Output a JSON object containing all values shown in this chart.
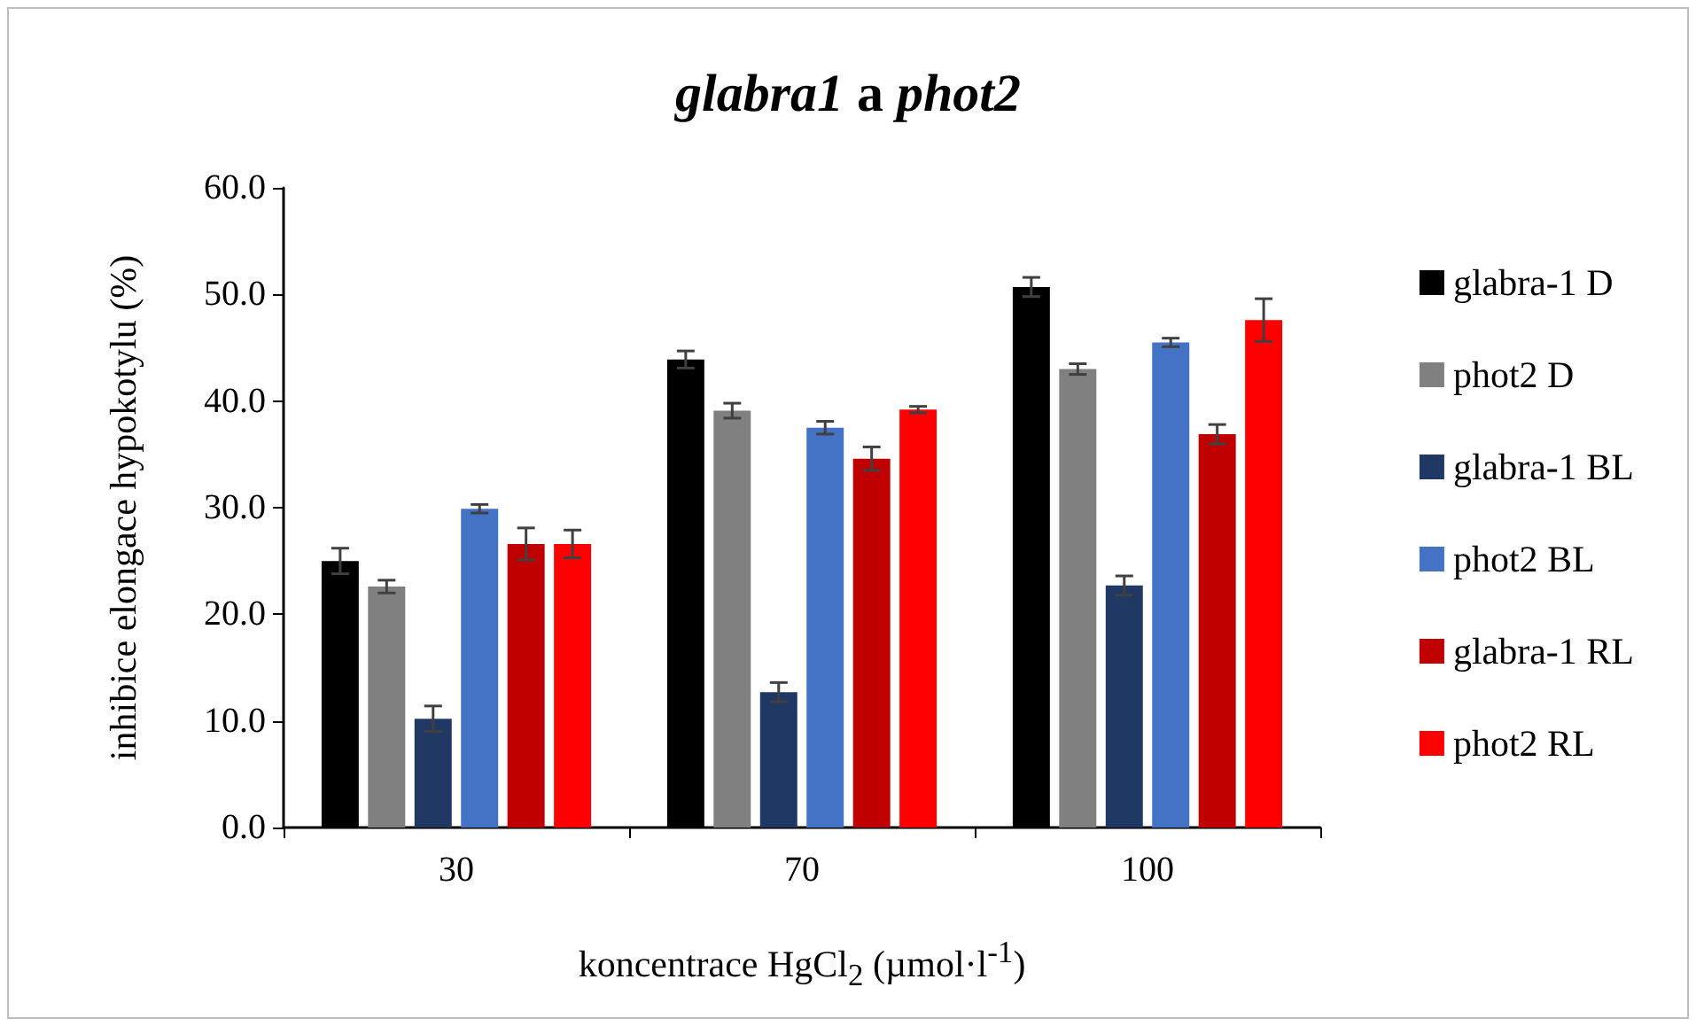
{
  "chart_data": {
    "type": "bar",
    "title": "glabra1 a phot2",
    "xlabel": "koncentrace HgCl$_{2}$ (µmol·l$^{-1}$)",
    "ylabel": "inhibice elongace hypokotylu (%)",
    "categories": [
      "30",
      "70",
      "100"
    ],
    "series": [
      {
        "name": "glabra-1 D",
        "color": "#000000",
        "values": [
          25.0,
          43.9,
          50.7
        ],
        "errors": [
          1.2,
          0.8,
          0.9
        ]
      },
      {
        "name": "phot2 D",
        "color": "#808080",
        "values": [
          22.6,
          39.1,
          43.0
        ],
        "errors": [
          0.6,
          0.7,
          0.5
        ]
      },
      {
        "name": "glabra-1 BL",
        "color": "#1f3864",
        "values": [
          10.2,
          12.7,
          22.7
        ],
        "errors": [
          1.2,
          0.9,
          0.9
        ]
      },
      {
        "name": "phot2 BL",
        "color": "#4472c4",
        "values": [
          29.9,
          37.5,
          45.5
        ],
        "errors": [
          0.4,
          0.6,
          0.4
        ]
      },
      {
        "name": "glabra-1 RL",
        "color": "#c00000",
        "values": [
          26.6,
          34.6,
          36.9
        ],
        "errors": [
          1.5,
          1.1,
          0.9
        ]
      },
      {
        "name": "phot2 RL",
        "color": "#ff0000",
        "values": [
          26.6,
          39.2,
          47.6
        ],
        "errors": [
          1.3,
          0.3,
          2.0
        ]
      }
    ],
    "ylim": [
      0,
      60
    ],
    "yticks": [
      {
        "value": 0,
        "label": "0.0"
      },
      {
        "value": 10,
        "label": "10.0"
      },
      {
        "value": 20,
        "label": "20.0"
      },
      {
        "value": 30,
        "label": "30.0"
      },
      {
        "value": 40,
        "label": "40.0"
      },
      {
        "value": 50,
        "label": "50.0"
      },
      {
        "value": 60,
        "label": "60.0"
      }
    ],
    "grid": false,
    "legend": "right"
  }
}
